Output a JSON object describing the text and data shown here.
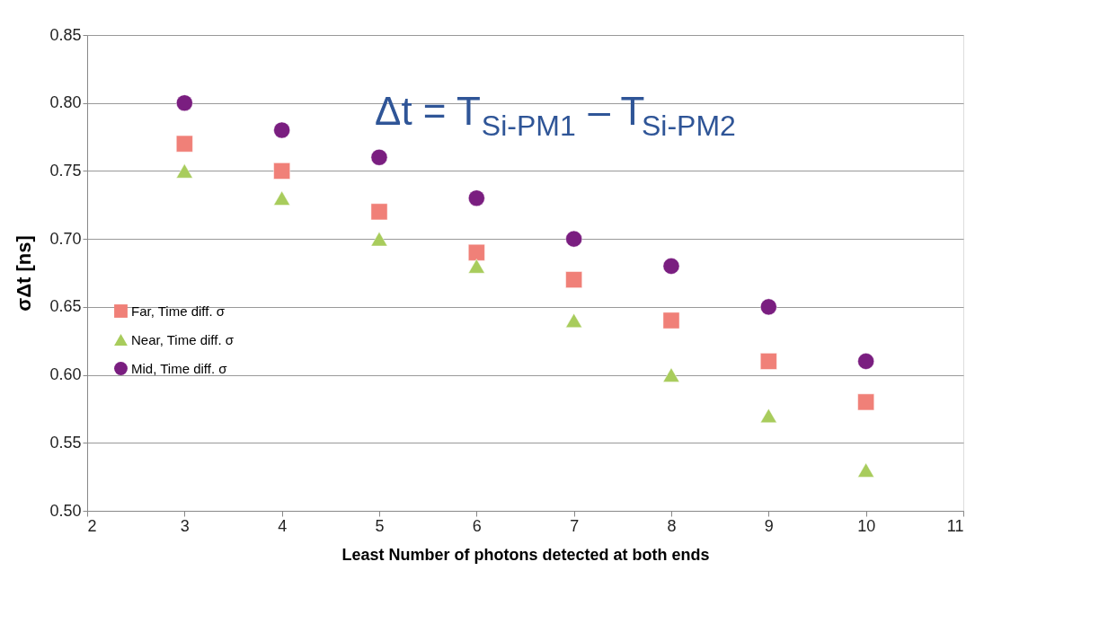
{
  "chart_data": {
    "type": "scatter",
    "xlabel": "Least Number of photons detected at both ends",
    "ylabel": "σΔt [ns]",
    "x": [
      3,
      4,
      5,
      6,
      7,
      8,
      9,
      10
    ],
    "series": [
      {
        "name": "Far, Time diff. σ",
        "color": "#f08078",
        "marker": "square",
        "values": [
          0.77,
          0.75,
          0.72,
          0.69,
          0.67,
          0.64,
          0.61,
          0.58
        ]
      },
      {
        "name": "Near, Time diff. σ",
        "color": "#a8cc5c",
        "marker": "triangle",
        "values": [
          0.75,
          0.73,
          0.7,
          0.68,
          0.64,
          0.6,
          0.57,
          0.53
        ]
      },
      {
        "name": "Mid, Time diff. σ",
        "color": "#7a1e80",
        "marker": "circle",
        "values": [
          0.8,
          0.78,
          0.76,
          0.73,
          0.7,
          0.68,
          0.65,
          0.61
        ]
      }
    ],
    "xlim": [
      2,
      11
    ],
    "xticks": [
      2,
      3,
      4,
      5,
      6,
      7,
      8,
      9,
      10,
      11
    ],
    "ylim": [
      0.5,
      0.85
    ],
    "yticks": [
      {
        "value": 0.5,
        "label": "0.50"
      },
      0.55,
      {
        "value": 0.6,
        "label": "0.60"
      },
      0.65,
      {
        "value": 0.7,
        "label": "0.70"
      },
      0.75,
      {
        "value": 0.8,
        "label": "0.80"
      },
      0.85
    ],
    "grid": "y",
    "legend": "left",
    "annotations": [
      "Δt = T$_{Si-PM1}$ – T$_{Si-PM2}$"
    ]
  }
}
